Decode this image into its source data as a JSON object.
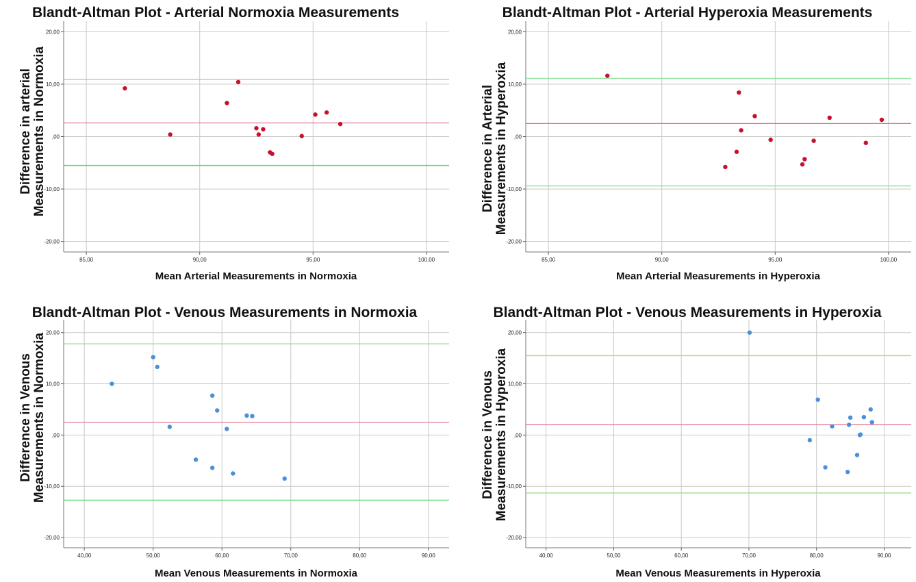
{
  "chart_data": [
    {
      "type": "scatter",
      "title": "Blandt-Altman Plot - Arterial Normoxia Measurements",
      "xlabel": "Mean Arterial Measurements in Normoxia",
      "ylabel_lines": [
        "Difference in arterial",
        "Measurements in Normoxia"
      ],
      "xlim": [
        84,
        101
      ],
      "ylim": [
        -22,
        22
      ],
      "xticks": [
        85,
        90,
        95,
        100
      ],
      "xtick_labels": [
        "85,00",
        "90,00",
        "95,00",
        "100,00"
      ],
      "yticks": [
        -20,
        -10,
        0,
        10,
        20
      ],
      "ytick_labels": [
        "-20,00",
        "-10,00",
        ",00",
        "10,00",
        "20,00"
      ],
      "grid": true,
      "point_color": "#c8102e",
      "mean_line": {
        "y": 2.6,
        "color": "#e06c8c"
      },
      "limit_lines": [
        {
          "y": 10.9,
          "color": "#8ee39c"
        },
        {
          "y": -5.5,
          "color": "#56d86a"
        }
      ],
      "points": [
        {
          "x": 86.7,
          "y": 9.2
        },
        {
          "x": 88.7,
          "y": 0.4
        },
        {
          "x": 91.2,
          "y": 6.4
        },
        {
          "x": 91.7,
          "y": 10.4
        },
        {
          "x": 92.5,
          "y": 1.6
        },
        {
          "x": 92.6,
          "y": 0.4
        },
        {
          "x": 92.8,
          "y": 1.4
        },
        {
          "x": 93.1,
          "y": -3.0
        },
        {
          "x": 93.2,
          "y": -3.3
        },
        {
          "x": 94.5,
          "y": 0.1
        },
        {
          "x": 95.1,
          "y": 4.2
        },
        {
          "x": 95.6,
          "y": 4.6
        },
        {
          "x": 96.2,
          "y": 2.4
        }
      ]
    },
    {
      "type": "scatter",
      "title": "Blandt-Altman Plot - Arterial Hyperoxia Measurements",
      "xlabel": "Mean Arterial Measurements in Hyperoxia",
      "ylabel_lines": [
        "Difference in Arterial",
        "Measurements in Hyperoxia"
      ],
      "xlim": [
        84,
        101
      ],
      "ylim": [
        -22,
        22
      ],
      "xticks": [
        85,
        90,
        95,
        100
      ],
      "xtick_labels": [
        "85,00",
        "90,00",
        "95,00",
        "100,00"
      ],
      "yticks": [
        -20,
        -10,
        0,
        10,
        20
      ],
      "ytick_labels": [
        "-20,00",
        "-10,00",
        ",00",
        "10,00",
        "20,00"
      ],
      "grid": true,
      "point_color": "#c8102e",
      "mean_line": {
        "y": 2.5,
        "color": "#e06c8c"
      },
      "limit_lines": [
        {
          "y": 11.1,
          "color": "#8ee39c"
        },
        {
          "y": -9.4,
          "color": "#8ee39c"
        }
      ],
      "points": [
        {
          "x": 87.6,
          "y": 11.6
        },
        {
          "x": 92.8,
          "y": -5.8
        },
        {
          "x": 93.3,
          "y": -2.9
        },
        {
          "x": 93.4,
          "y": 8.4
        },
        {
          "x": 93.5,
          "y": 1.2
        },
        {
          "x": 94.1,
          "y": 3.9
        },
        {
          "x": 94.8,
          "y": -0.6
        },
        {
          "x": 96.2,
          "y": -5.3
        },
        {
          "x": 96.3,
          "y": -4.3
        },
        {
          "x": 96.7,
          "y": -0.8
        },
        {
          "x": 97.4,
          "y": 3.6
        },
        {
          "x": 99.0,
          "y": -1.2
        },
        {
          "x": 99.7,
          "y": 3.2
        }
      ]
    },
    {
      "type": "scatter",
      "title": "Blandt-Altman Plot - Venous Measurements in Normoxia",
      "xlabel": "Mean Venous Measurements in Normoxia",
      "ylabel_lines": [
        "Difference in Venous",
        "Measurements in Normoxia"
      ],
      "xlim": [
        37,
        93
      ],
      "ylim": [
        -22,
        22.5
      ],
      "xticks": [
        40,
        50,
        60,
        70,
        80,
        90
      ],
      "xtick_labels": [
        "40,00",
        "50,00",
        "60,00",
        "70,00",
        "80,00",
        "90,00"
      ],
      "yticks": [
        -20,
        -10,
        0,
        10,
        20
      ],
      "ytick_labels": [
        "-20,00",
        "-10,00",
        ",00",
        "10,00",
        "20,00"
      ],
      "grid": true,
      "point_color": "#4a90d9",
      "mean_line": {
        "y": 2.5,
        "color": "#e06c8c"
      },
      "limit_lines": [
        {
          "y": 17.8,
          "color": "#8ee39c"
        },
        {
          "y": -12.7,
          "color": "#56d86a"
        }
      ],
      "points": [
        {
          "x": 44.0,
          "y": 10.0
        },
        {
          "x": 50.0,
          "y": 15.2
        },
        {
          "x": 50.6,
          "y": 13.3
        },
        {
          "x": 52.4,
          "y": 1.6
        },
        {
          "x": 56.2,
          "y": -4.8
        },
        {
          "x": 58.6,
          "y": 7.7
        },
        {
          "x": 58.6,
          "y": -6.4
        },
        {
          "x": 59.3,
          "y": 4.8
        },
        {
          "x": 60.7,
          "y": 1.2
        },
        {
          "x": 61.6,
          "y": -7.5
        },
        {
          "x": 63.6,
          "y": 3.8
        },
        {
          "x": 64.4,
          "y": 3.7
        },
        {
          "x": 69.1,
          "y": -8.5
        }
      ]
    },
    {
      "type": "scatter",
      "title": "Blandt-Altman Plot - Venous Measurements in Hyperoxia",
      "xlabel": "Mean Venous Measurements in Hyperoxia",
      "ylabel_lines": [
        "Difference in Venous",
        "Measurements in Hyperoxia"
      ],
      "xlim": [
        37,
        94
      ],
      "ylim": [
        -22,
        22.5
      ],
      "xticks": [
        40,
        50,
        60,
        70,
        80,
        90
      ],
      "xtick_labels": [
        "40,00",
        "50,00",
        "60,00",
        "70,00",
        "80,00",
        "90,00"
      ],
      "yticks": [
        -20,
        -10,
        0,
        10,
        20
      ],
      "ytick_labels": [
        "-20,00",
        "-10,00",
        ",00",
        "10,00",
        "20,00"
      ],
      "grid": true,
      "point_color": "#4a90d9",
      "mean_line": {
        "y": 2.0,
        "color": "#e06c8c"
      },
      "limit_lines": [
        {
          "y": 15.5,
          "color": "#a6dd8c"
        },
        {
          "y": -11.3,
          "color": "#a6dd8c"
        }
      ],
      "points": [
        {
          "x": 70.1,
          "y": 20.0
        },
        {
          "x": 79.0,
          "y": -1.0
        },
        {
          "x": 80.2,
          "y": 6.9
        },
        {
          "x": 81.3,
          "y": -6.3
        },
        {
          "x": 82.3,
          "y": 1.7
        },
        {
          "x": 84.6,
          "y": -7.2
        },
        {
          "x": 84.8,
          "y": 2.0
        },
        {
          "x": 85.0,
          "y": 3.4
        },
        {
          "x": 86.0,
          "y": -3.9
        },
        {
          "x": 86.4,
          "y": 0.0
        },
        {
          "x": 86.5,
          "y": 0.1
        },
        {
          "x": 87.0,
          "y": 3.5
        },
        {
          "x": 88.0,
          "y": 5.0
        },
        {
          "x": 88.2,
          "y": 2.5
        }
      ]
    }
  ]
}
